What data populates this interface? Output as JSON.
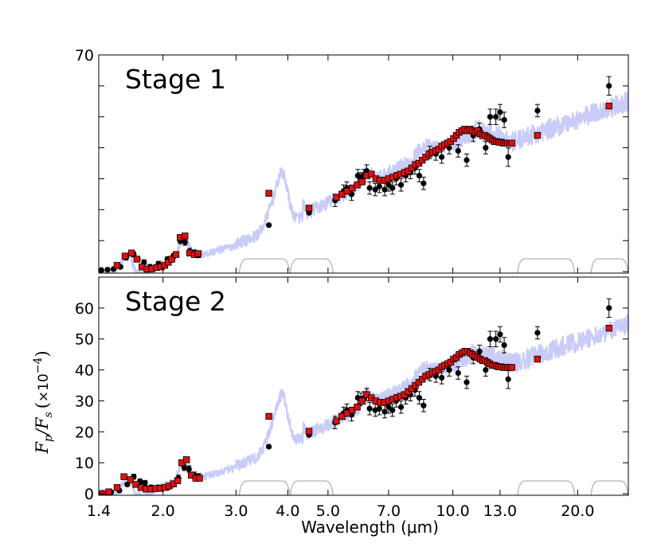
{
  "chart_data": {
    "type": "scatter",
    "x_scale": "log",
    "xlabel": "Wavelength (μm)",
    "ylabel": "F_p / F_s (×10^-4)",
    "ylabel_parts": [
      "F",
      "p",
      "/",
      "F",
      "s",
      "(",
      "×10",
      "−4",
      ")"
    ],
    "x_ticks": [
      "1.4",
      "2.0",
      "3.0",
      "4.0",
      "5.0",
      "7.0",
      "10.0",
      "13.0",
      "20.0"
    ],
    "x_tick_values": [
      1.4,
      2.0,
      3.0,
      4.0,
      5.0,
      7.0,
      10.0,
      13.0,
      20.0
    ],
    "xlim": [
      1.4,
      26.5
    ],
    "colors": {
      "model_line": "#c8ccf7",
      "model_binned": "#dd1111",
      "observed": "#000000",
      "filter_curve": "#c0c0c0"
    },
    "panels": [
      {
        "label": "Stage 1",
        "ylim": [
          -0.5,
          70
        ],
        "y_ticks": [
          "70"
        ],
        "y_tick_values": [
          70
        ],
        "model_binned": {
          "x": [
            1.55,
            1.62,
            1.68,
            1.73,
            1.78,
            1.83,
            1.88,
            1.93,
            1.98,
            2.02,
            2.06,
            2.1,
            2.15,
            2.2,
            2.26,
            2.32,
            2.38,
            2.43,
            3.6,
            4.5,
            5.24,
            5.4,
            5.56,
            5.72,
            5.88,
            6.04,
            6.2,
            6.36,
            6.52,
            6.68,
            6.84,
            7.0,
            7.16,
            7.32,
            7.48,
            7.64,
            7.8,
            7.96,
            8.12,
            8.28,
            8.44,
            8.6,
            8.76,
            8.92,
            9.08,
            9.24,
            9.4,
            9.56,
            9.72,
            9.88,
            10.04,
            10.2,
            10.36,
            10.52,
            10.68,
            10.84,
            11.0,
            11.16,
            11.32,
            11.48,
            11.64,
            11.8,
            11.96,
            12.12,
            12.28,
            12.44,
            12.6,
            12.76,
            12.92,
            13.08,
            13.24,
            13.4,
            13.56,
            13.72,
            13.88,
            16.0,
            23.8
          ],
          "y": [
            2.0,
            5.0,
            6.0,
            4.0,
            1.5,
            0.8,
            0.9,
            1.3,
            1.5,
            2.0,
            3.0,
            4.0,
            5.5,
            11.0,
            11.5,
            6.0,
            5.5,
            5.8,
            25.3,
            20.5,
            24.0,
            25.0,
            26.0,
            27.0,
            28.0,
            29.0,
            31.0,
            31.5,
            30.0,
            29.5,
            29.5,
            30.0,
            30.5,
            31.0,
            31.5,
            32.0,
            32.5,
            33.5,
            34.5,
            35.0,
            36.0,
            37.0,
            38.0,
            38.5,
            39.0,
            39.5,
            40.5,
            41.0,
            41.5,
            42.0,
            43.0,
            44.0,
            45.0,
            45.5,
            46.0,
            45.5,
            46.0,
            45.5,
            45.0,
            45.5,
            44.5,
            44.0,
            44.0,
            43.5,
            43.0,
            42.5,
            42.0,
            42.0,
            41.8,
            41.8,
            41.5,
            41.5,
            41.5,
            41.5,
            41.5,
            44.0,
            53.5
          ]
        },
        "observed": {
          "x": [
            1.42,
            1.47,
            1.52,
            1.58,
            1.63,
            1.7,
            1.74,
            1.8,
            1.86,
            1.95,
            2.05,
            2.12,
            2.2,
            2.26,
            2.32,
            2.38,
            2.44,
            3.6,
            4.5,
            5.2,
            5.45,
            5.55,
            5.7,
            5.9,
            6.0,
            6.1,
            6.2,
            6.3,
            6.5,
            6.65,
            6.85,
            7.0,
            7.15,
            7.3,
            7.5,
            7.7,
            7.9,
            8.1,
            8.3,
            8.5,
            8.8,
            9.1,
            9.4,
            9.8,
            10.3,
            10.8,
            11.2,
            11.6,
            12.0,
            12.3,
            12.7,
            13.0,
            13.3,
            13.6,
            16.0,
            23.8
          ],
          "y": [
            0.5,
            0.6,
            0.8,
            1.5,
            4.5,
            5.5,
            4.0,
            3.0,
            1.5,
            2.5,
            4.0,
            5.0,
            10.0,
            9.5,
            6.5,
            6.0,
            5.5,
            15.0,
            19.0,
            23.0,
            26.0,
            27.0,
            25.0,
            31.0,
            30.0,
            31.0,
            32.5,
            27.0,
            26.5,
            27.5,
            26.5,
            28.0,
            27.0,
            30.0,
            28.0,
            31.0,
            32.0,
            33.5,
            31.0,
            28.5,
            38.5,
            38.0,
            37.0,
            40.0,
            39.0,
            36.0,
            44.0,
            46.0,
            40.0,
            50.0,
            50.0,
            51.5,
            49.0,
            37.0,
            52.0,
            60.0
          ],
          "err": [
            0.4,
            0.4,
            0.4,
            0.4,
            0.8,
            0.8,
            0.8,
            0.8,
            0.8,
            0.8,
            0.8,
            0.8,
            1.0,
            1.0,
            1.0,
            1.0,
            1.0,
            0.5,
            0.5,
            2.0,
            2.0,
            2.0,
            2.0,
            2.0,
            2.0,
            2.0,
            2.0,
            2.0,
            2.0,
            2.0,
            2.0,
            2.0,
            2.0,
            2.0,
            2.0,
            2.0,
            2.0,
            2.0,
            2.0,
            2.0,
            2.0,
            2.0,
            2.0,
            2.0,
            2.0,
            2.0,
            2.0,
            2.0,
            2.0,
            2.5,
            2.5,
            2.5,
            2.5,
            3.0,
            2.0,
            3.0
          ]
        }
      },
      {
        "label": "Stage 2",
        "ylim": [
          -0.5,
          70
        ],
        "y_ticks": [
          "0",
          "10",
          "20",
          "30",
          "40",
          "50",
          "60"
        ],
        "y_tick_values": [
          0,
          10,
          20,
          30,
          40,
          50,
          60
        ],
        "model_binned": {
          "x": [
            1.43,
            1.48,
            1.55,
            1.61,
            1.67,
            1.72,
            1.77,
            1.82,
            1.87,
            1.92,
            1.97,
            2.02,
            2.07,
            2.12,
            2.17,
            2.22,
            2.28,
            2.34,
            2.4,
            2.45,
            3.6,
            4.5,
            5.24,
            5.4,
            5.56,
            5.72,
            5.88,
            6.04,
            6.2,
            6.36,
            6.52,
            6.68,
            6.84,
            7.0,
            7.16,
            7.32,
            7.48,
            7.64,
            7.8,
            7.96,
            8.12,
            8.28,
            8.44,
            8.6,
            8.76,
            8.92,
            9.08,
            9.24,
            9.4,
            9.56,
            9.72,
            9.88,
            10.04,
            10.2,
            10.36,
            10.52,
            10.68,
            10.84,
            11.0,
            11.16,
            11.32,
            11.48,
            11.64,
            11.8,
            11.96,
            12.12,
            12.28,
            12.44,
            12.6,
            12.76,
            12.92,
            13.08,
            13.24,
            13.4,
            13.56,
            13.72,
            13.88,
            16.0,
            23.8
          ],
          "y": [
            0.0,
            0.6,
            2.0,
            5.5,
            4.5,
            3.0,
            2.0,
            1.5,
            1.5,
            1.7,
            1.7,
            2.0,
            2.5,
            3.2,
            4.2,
            10.0,
            11.0,
            6.0,
            5.0,
            5.0,
            25.0,
            20.2,
            23.5,
            25.0,
            26.0,
            27.0,
            28.0,
            30.0,
            32.0,
            31.0,
            30.0,
            29.5,
            29.5,
            30.0,
            30.5,
            31.0,
            31.5,
            32.0,
            33.0,
            34.0,
            35.0,
            36.0,
            37.0,
            38.0,
            38.5,
            39.0,
            39.5,
            40.0,
            41.0,
            41.5,
            42.0,
            42.5,
            43.5,
            44.0,
            45.0,
            45.5,
            46.0,
            46.0,
            45.5,
            45.0,
            44.5,
            44.0,
            43.5,
            43.0,
            43.0,
            42.5,
            42.0,
            41.5,
            41.5,
            41.2,
            41.0,
            41.0,
            40.8,
            40.8,
            40.8,
            40.8,
            40.8,
            43.5,
            53.5
          ]
        },
        "observed": {
          "x": [
            1.43,
            1.5,
            1.57,
            1.64,
            1.7,
            1.76,
            1.81,
            1.87,
            1.95,
            2.05,
            2.12,
            2.18,
            2.25,
            2.31,
            2.38,
            2.44,
            3.6,
            4.5,
            5.2,
            5.45,
            5.55,
            5.7,
            5.9,
            6.0,
            6.1,
            6.2,
            6.3,
            6.5,
            6.65,
            6.85,
            7.0,
            7.15,
            7.3,
            7.5,
            7.7,
            7.9,
            8.1,
            8.3,
            8.5,
            8.8,
            9.1,
            9.4,
            9.8,
            10.3,
            10.8,
            11.2,
            11.6,
            12.0,
            12.3,
            12.7,
            13.0,
            13.3,
            13.6,
            16.0,
            23.8
          ],
          "y": [
            0.3,
            0.5,
            1.0,
            3.0,
            5.5,
            4.0,
            3.5,
            2.0,
            2.0,
            2.0,
            3.0,
            5.0,
            8.5,
            8.0,
            6.0,
            5.5,
            15.2,
            19.0,
            23.0,
            26.0,
            27.0,
            25.5,
            31.0,
            30.5,
            31.0,
            32.0,
            27.5,
            27.0,
            27.5,
            26.5,
            28.0,
            27.0,
            30.0,
            28.0,
            31.0,
            32.0,
            33.5,
            31.0,
            28.5,
            38.5,
            38.0,
            37.5,
            40.0,
            39.0,
            36.0,
            44.0,
            46.0,
            40.0,
            50.0,
            50.0,
            51.5,
            48.0,
            37.0,
            52.0,
            60.0
          ],
          "err": [
            0.4,
            0.4,
            0.4,
            0.6,
            0.8,
            0.8,
            0.8,
            0.8,
            0.8,
            0.8,
            0.8,
            1.0,
            1.0,
            1.0,
            1.0,
            1.0,
            0.5,
            0.5,
            2.0,
            2.0,
            2.0,
            2.0,
            2.0,
            2.0,
            2.0,
            2.0,
            2.0,
            2.0,
            2.0,
            2.0,
            2.0,
            2.0,
            2.0,
            2.0,
            2.0,
            2.0,
            2.0,
            2.0,
            2.0,
            2.0,
            2.0,
            2.0,
            2.0,
            2.0,
            2.0,
            2.0,
            2.0,
            2.0,
            2.5,
            2.5,
            2.5,
            2.5,
            3.0,
            2.0,
            3.0
          ]
        }
      }
    ]
  }
}
